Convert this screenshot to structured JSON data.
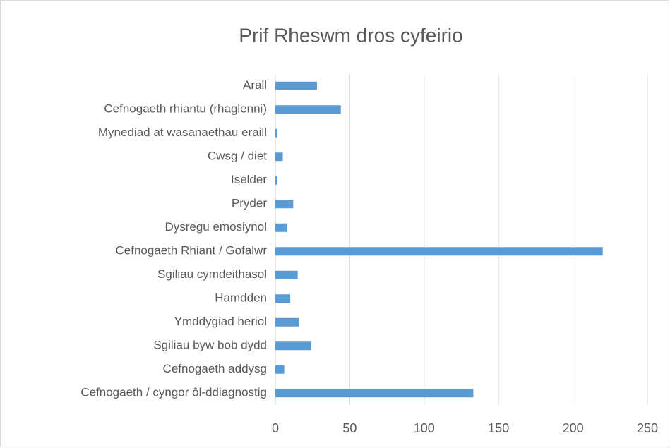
{
  "chart_data": {
    "type": "barh",
    "title": "Prif Rheswm dros cyfeirio",
    "categories": [
      "Arall",
      "Cefnogaeth rhiantu (rhaglenni)",
      "Mynediad at wasanaethau eraill",
      "Cwsg / diet",
      "Iselder",
      "Pryder",
      "Dysregu emosiynol",
      "Cefnogaeth Rhiant / Gofalwr",
      "Sgiliau cymdeithasol",
      "Hamdden",
      "Ymddygiad heriol",
      "Sgiliau byw bob dydd",
      "Cefnogaeth addysg",
      "Cefnogaeth / cyngor ôl-ddiagnostig"
    ],
    "values": [
      28,
      44,
      1,
      5,
      1,
      12,
      8,
      220,
      15,
      10,
      16,
      24,
      6,
      133
    ],
    "color": "#5b9bd5",
    "xlim": [
      0,
      250
    ],
    "xticks": [
      0,
      50,
      100,
      150,
      200,
      250
    ],
    "grid": true
  }
}
